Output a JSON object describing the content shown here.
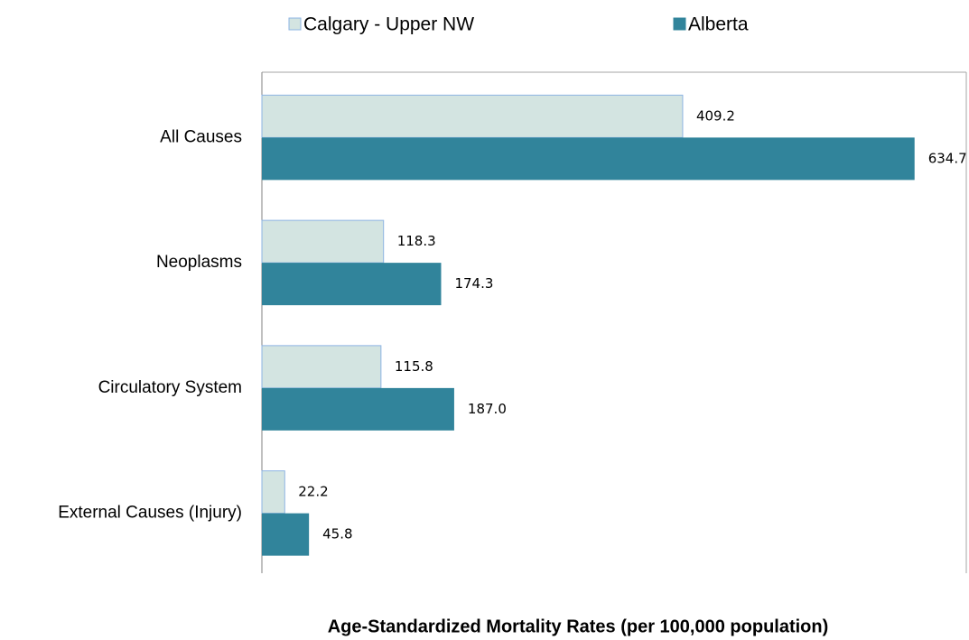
{
  "chart_data": {
    "type": "bar",
    "orientation": "horizontal",
    "title": "Age-Standardized Mortality Rates (per 100,000 population)",
    "categories": [
      "All Causes",
      "Neoplasms",
      "Circulatory System",
      "External Causes (Injury)"
    ],
    "series": [
      {
        "name": "Calgary - Upper NW",
        "color": "#d3e4e1",
        "edge_color": "#8eb4e3",
        "values": [
          409.2,
          118.3,
          115.8,
          22.2
        ],
        "value_labels": [
          "409.2",
          "118.3",
          "115.8",
          "22.2"
        ]
      },
      {
        "name": "Alberta",
        "color": "#31849b",
        "values": [
          634.7,
          174.3,
          187.0,
          45.8
        ],
        "value_labels": [
          "634.7",
          "174.3",
          "187.0",
          "45.8"
        ]
      }
    ],
    "xlim": [
      0,
      685
    ],
    "legend": "top"
  }
}
